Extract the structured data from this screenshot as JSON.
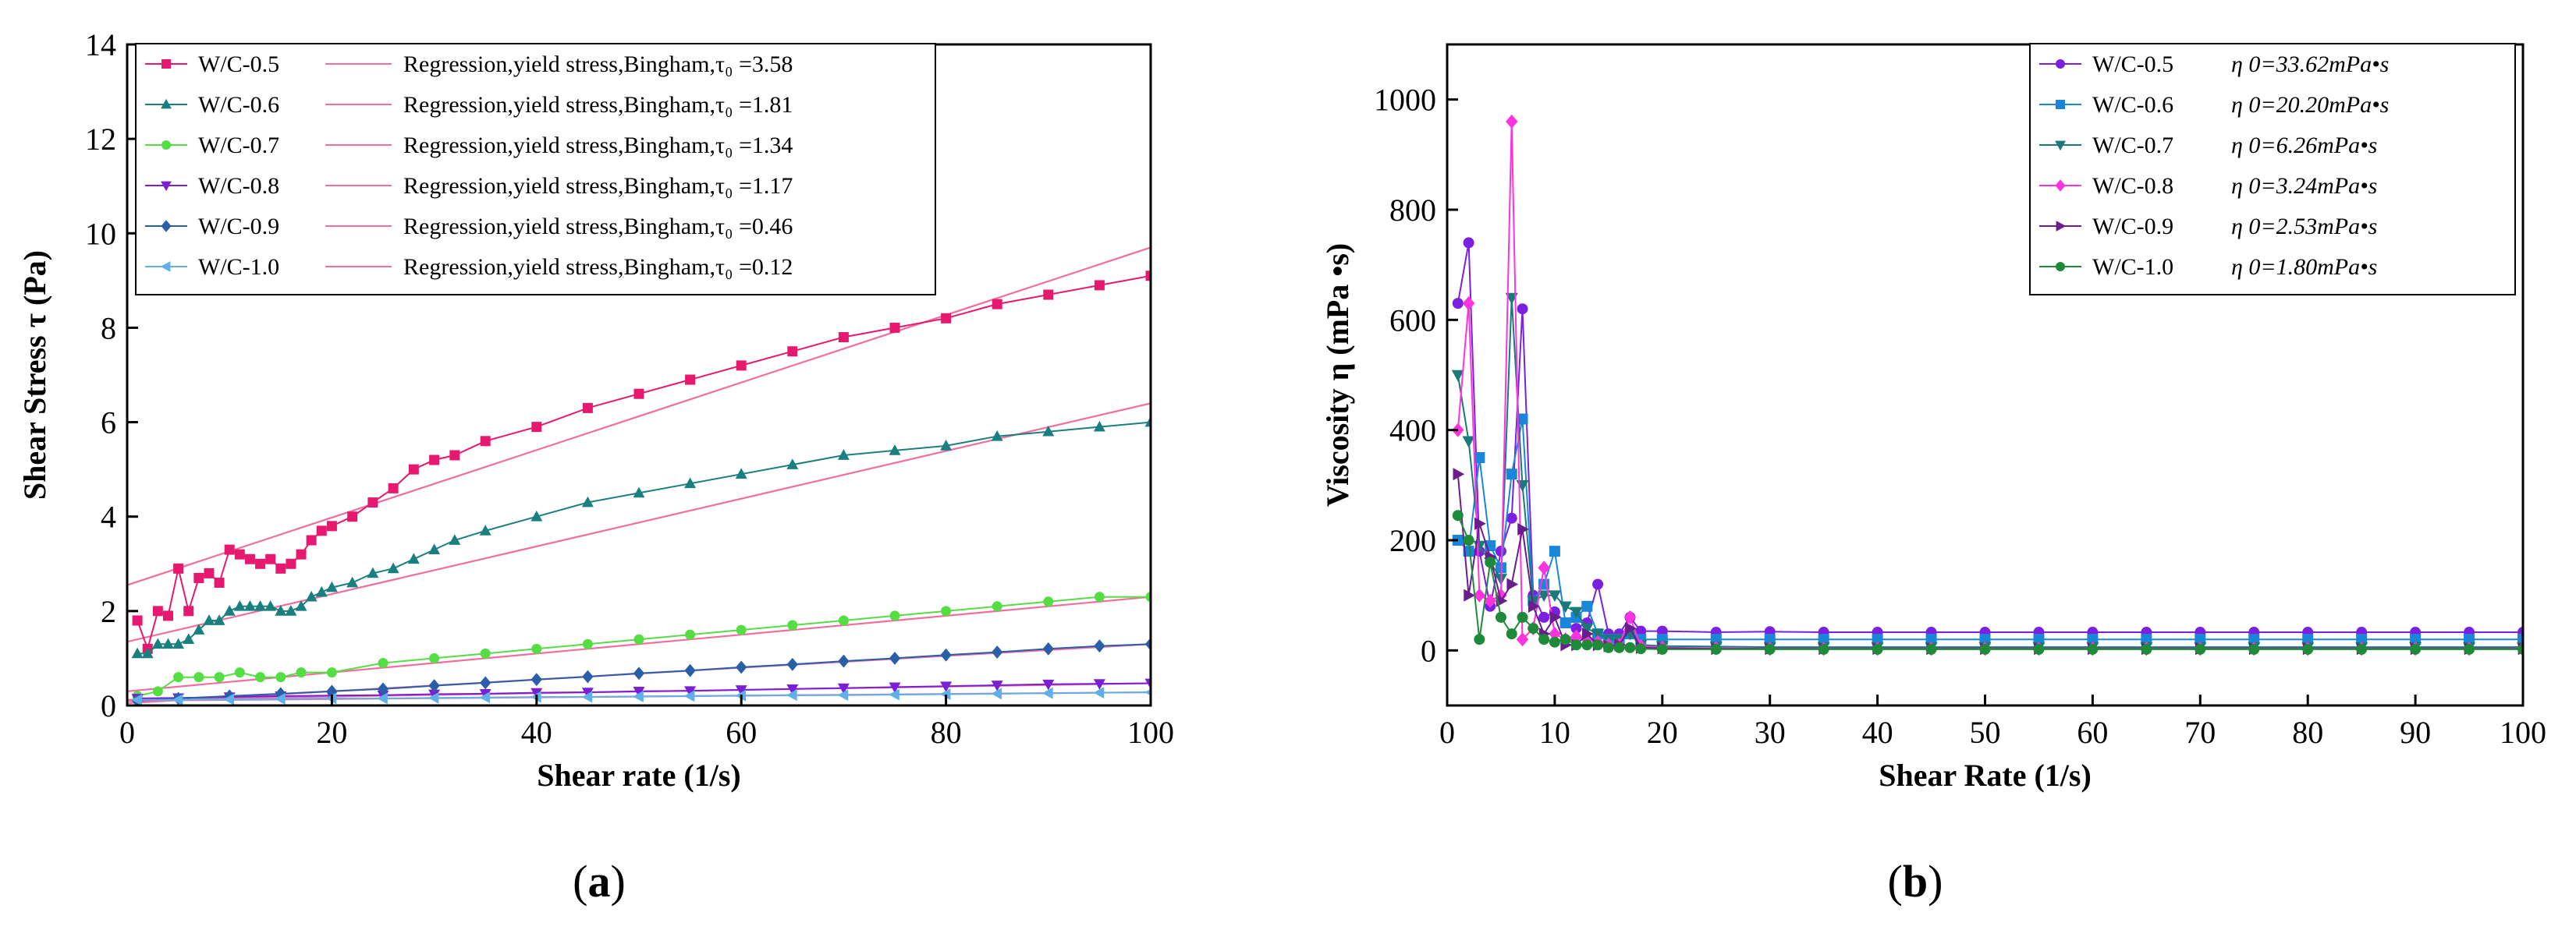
{
  "panel_labels": {
    "a": {
      "open": "(",
      "letter": "a",
      "close": ")"
    },
    "b": {
      "open": "(",
      "letter": "b",
      "close": ")"
    }
  },
  "chart_data": [
    {
      "id": "a",
      "type": "line",
      "xlabel": "Shear rate (1/s)",
      "ylabel": "Shear Stress  τ  (Pa)",
      "xlim": [
        0,
        100
      ],
      "ylim": [
        0,
        14
      ],
      "xticks": [
        0,
        20,
        40,
        60,
        80,
        100
      ],
      "yticks": [
        0,
        2,
        4,
        6,
        8,
        10,
        12,
        14
      ],
      "legend_position": "top-left",
      "series": [
        {
          "name": "W/C-0.5",
          "color": "#e6196e",
          "marker": "square",
          "x": [
            1,
            2,
            3,
            4,
            5,
            6,
            7,
            8,
            9,
            10,
            11,
            12,
            13,
            14,
            15,
            16,
            17,
            18,
            19,
            20,
            22,
            24,
            26,
            28,
            30,
            32,
            35,
            40,
            45,
            50,
            55,
            60,
            65,
            70,
            75,
            80,
            85,
            90,
            95,
            100
          ],
          "y": [
            1.8,
            1.2,
            2.0,
            1.9,
            2.9,
            2.0,
            2.7,
            2.8,
            2.6,
            3.3,
            3.2,
            3.1,
            3.0,
            3.1,
            2.9,
            3.0,
            3.2,
            3.5,
            3.7,
            3.8,
            4.0,
            4.3,
            4.6,
            5.0,
            5.2,
            5.3,
            5.6,
            5.9,
            6.3,
            6.6,
            6.9,
            7.2,
            7.5,
            7.8,
            8.0,
            8.2,
            8.5,
            8.7,
            8.9,
            9.1
          ]
        },
        {
          "name": "W/C-0.6",
          "color": "#1a7f7f",
          "marker": "triangle-up",
          "x": [
            1,
            2,
            3,
            4,
            5,
            6,
            7,
            8,
            9,
            10,
            11,
            12,
            13,
            14,
            15,
            16,
            17,
            18,
            19,
            20,
            22,
            24,
            26,
            28,
            30,
            32,
            35,
            40,
            45,
            50,
            55,
            60,
            65,
            70,
            75,
            80,
            85,
            90,
            95,
            100
          ],
          "y": [
            1.1,
            1.1,
            1.3,
            1.3,
            1.3,
            1.4,
            1.6,
            1.8,
            1.8,
            2.0,
            2.1,
            2.1,
            2.1,
            2.1,
            2.0,
            2.0,
            2.1,
            2.3,
            2.4,
            2.5,
            2.6,
            2.8,
            2.9,
            3.1,
            3.3,
            3.5,
            3.7,
            4.0,
            4.3,
            4.5,
            4.7,
            4.9,
            5.1,
            5.3,
            5.4,
            5.5,
            5.7,
            5.8,
            5.9,
            6.0
          ]
        },
        {
          "name": "W/C-0.7",
          "color": "#55dd44",
          "marker": "circle",
          "x": [
            1,
            3,
            5,
            7,
            9,
            11,
            13,
            15,
            17,
            20,
            25,
            30,
            35,
            40,
            45,
            50,
            55,
            60,
            65,
            70,
            75,
            80,
            85,
            90,
            95,
            100
          ],
          "y": [
            0.2,
            0.3,
            0.6,
            0.6,
            0.6,
            0.7,
            0.6,
            0.6,
            0.7,
            0.7,
            0.9,
            1.0,
            1.1,
            1.2,
            1.3,
            1.4,
            1.5,
            1.6,
            1.7,
            1.8,
            1.9,
            2.0,
            2.1,
            2.2,
            2.3,
            2.3
          ]
        },
        {
          "name": "W/C-0.8",
          "color": "#7a1fd6",
          "marker": "triangle-down",
          "x": [
            1,
            5,
            10,
            15,
            20,
            25,
            30,
            35,
            40,
            45,
            50,
            55,
            60,
            65,
            70,
            75,
            80,
            85,
            90,
            95,
            100
          ],
          "y": [
            0.15,
            0.16,
            0.18,
            0.2,
            0.21,
            0.22,
            0.24,
            0.25,
            0.27,
            0.28,
            0.3,
            0.31,
            0.33,
            0.35,
            0.37,
            0.39,
            0.41,
            0.43,
            0.45,
            0.46,
            0.47
          ]
        },
        {
          "name": "W/C-0.9",
          "color": "#2a5fa8",
          "marker": "diamond",
          "x": [
            1,
            5,
            10,
            15,
            20,
            25,
            30,
            35,
            40,
            45,
            50,
            55,
            60,
            65,
            70,
            75,
            80,
            85,
            90,
            95,
            100
          ],
          "y": [
            0.1,
            0.15,
            0.2,
            0.25,
            0.3,
            0.35,
            0.42,
            0.48,
            0.55,
            0.61,
            0.68,
            0.74,
            0.81,
            0.87,
            0.94,
            1.0,
            1.07,
            1.13,
            1.2,
            1.26,
            1.3
          ]
        },
        {
          "name": "W/C-1.0",
          "color": "#5fb0e8",
          "marker": "triangle-left",
          "x": [
            1,
            5,
            10,
            15,
            20,
            25,
            30,
            35,
            40,
            45,
            50,
            55,
            60,
            65,
            70,
            75,
            80,
            85,
            90,
            95,
            100
          ],
          "y": [
            0.12,
            0.12,
            0.13,
            0.14,
            0.15,
            0.15,
            0.16,
            0.17,
            0.18,
            0.18,
            0.19,
            0.2,
            0.21,
            0.22,
            0.22,
            0.23,
            0.24,
            0.25,
            0.26,
            0.27,
            0.28
          ]
        }
      ],
      "regressions": [
        {
          "name": "Regression,yield stress,Bingham,τ₀ =3.58",
          "color": "#f06ea0",
          "x": [
            0,
            100
          ],
          "y": [
            2.55,
            9.7
          ]
        },
        {
          "name": "Regression,yield stress,Bingham,τ₀ =1.81",
          "color": "#f06ea0",
          "x": [
            0,
            100
          ],
          "y": [
            1.35,
            6.4
          ]
        },
        {
          "name": "Regression,yield stress,Bingham,τ₀ =1.34",
          "color": "#f06ea0",
          "x": [
            0,
            100
          ],
          "y": [
            0.3,
            2.3
          ]
        },
        {
          "name": "Regression,yield stress,Bingham,τ₀ =1.17",
          "color": "#f06ea0",
          "x": [
            0,
            100
          ],
          "y": [
            0.12,
            0.47
          ]
        },
        {
          "name": "Regression,yield stress,Bingham,τ₀ =0.46",
          "color": "#f06ea0",
          "x": [
            0,
            100
          ],
          "y": [
            0.05,
            1.3
          ]
        },
        {
          "name": "Regression,yield stress,Bingham,τ₀ =0.12",
          "color": "#f06ea0",
          "x": [
            0,
            100
          ],
          "y": [
            0.1,
            0.28
          ]
        }
      ]
    },
    {
      "id": "b",
      "type": "line",
      "xlabel": "Shear Rate  (1/s)",
      "ylabel": "Viscosity  η  (mPa •s)",
      "xlim": [
        0,
        100
      ],
      "ylim": [
        -100,
        1100
      ],
      "xticks": [
        0,
        10,
        20,
        30,
        40,
        50,
        60,
        70,
        80,
        90,
        100
      ],
      "yticks": [
        0,
        200,
        400,
        600,
        800,
        1000
      ],
      "legend_position": "top-right",
      "series": [
        {
          "name": "W/C-0.5",
          "annotation": "η 0=33.62mPa•s",
          "color": "#7b1fe0",
          "marker": "circle",
          "x": [
            1,
            2,
            3,
            4,
            5,
            6,
            7,
            8,
            9,
            10,
            11,
            12,
            13,
            14,
            15,
            16,
            17,
            18,
            20,
            25,
            30,
            35,
            40,
            45,
            50,
            55,
            60,
            65,
            70,
            75,
            80,
            85,
            90,
            95,
            100
          ],
          "y": [
            630,
            740,
            180,
            80,
            180,
            240,
            620,
            100,
            60,
            70,
            50,
            40,
            50,
            120,
            30,
            30,
            60,
            35,
            35,
            33,
            34,
            33,
            33,
            33,
            33,
            33,
            33,
            33,
            33,
            33,
            33,
            33,
            33,
            33,
            33
          ]
        },
        {
          "name": "W/C-0.6",
          "annotation": "η 0=20.20mPa•s",
          "color": "#1a86d9",
          "marker": "square",
          "x": [
            1,
            2,
            3,
            4,
            5,
            6,
            7,
            8,
            9,
            10,
            11,
            12,
            13,
            14,
            15,
            16,
            17,
            18,
            20,
            25,
            30,
            35,
            40,
            45,
            50,
            55,
            60,
            65,
            70,
            75,
            80,
            85,
            90,
            95,
            100
          ],
          "y": [
            200,
            180,
            350,
            190,
            150,
            320,
            420,
            90,
            120,
            180,
            50,
            60,
            80,
            30,
            20,
            20,
            30,
            20,
            20,
            20,
            20,
            20,
            20,
            20,
            20,
            20,
            20,
            20,
            20,
            20,
            20,
            20,
            20,
            20,
            20
          ]
        },
        {
          "name": "W/C-0.7",
          "annotation": "η 0=6.26mPa•s",
          "color": "#1a7a7a",
          "marker": "triangle-down",
          "x": [
            1,
            2,
            3,
            4,
            5,
            6,
            7,
            8,
            9,
            10,
            11,
            12,
            13,
            14,
            15,
            16,
            17,
            18,
            20,
            25,
            30,
            35,
            40,
            45,
            50,
            55,
            60,
            65,
            70,
            75,
            80,
            85,
            90,
            95,
            100
          ],
          "y": [
            500,
            380,
            190,
            160,
            130,
            640,
            300,
            90,
            100,
            100,
            80,
            70,
            40,
            30,
            20,
            20,
            30,
            10,
            8,
            7,
            6,
            6,
            6,
            6,
            6,
            6,
            6,
            6,
            6,
            6,
            6,
            6,
            6,
            6,
            6
          ]
        },
        {
          "name": "W/C-0.8",
          "annotation": "η 0=3.24mPa•s",
          "color": "#ff33dd",
          "marker": "diamond",
          "x": [
            1,
            2,
            3,
            4,
            5,
            6,
            7,
            8,
            9,
            10,
            11,
            12,
            13,
            14,
            15,
            16,
            17,
            18,
            20,
            25,
            30,
            35,
            40,
            45,
            50,
            55,
            60,
            65,
            70,
            75,
            80,
            85,
            90,
            95,
            100
          ],
          "y": [
            400,
            630,
            100,
            90,
            100,
            960,
            20,
            40,
            150,
            30,
            20,
            25,
            20,
            15,
            10,
            10,
            60,
            8,
            5,
            4,
            3,
            3,
            3,
            3,
            3,
            3,
            3,
            3,
            3,
            3,
            3,
            3,
            3,
            3,
            3
          ]
        },
        {
          "name": "W/C-0.9",
          "annotation": "η 0=2.53mPa•s",
          "color": "#6a1d8c",
          "marker": "triangle-right",
          "x": [
            1,
            2,
            3,
            4,
            5,
            6,
            7,
            8,
            9,
            10,
            11,
            12,
            13,
            14,
            15,
            16,
            17,
            18,
            20,
            25,
            30,
            35,
            40,
            45,
            50,
            55,
            60,
            65,
            70,
            75,
            80,
            85,
            90,
            95,
            100
          ],
          "y": [
            320,
            100,
            230,
            170,
            90,
            120,
            220,
            80,
            30,
            60,
            10,
            10,
            30,
            10,
            8,
            10,
            40,
            5,
            4,
            3,
            3,
            3,
            3,
            3,
            3,
            3,
            3,
            3,
            3,
            3,
            3,
            3,
            3,
            3,
            3
          ]
        },
        {
          "name": "W/C-1.0",
          "annotation": "η 0=1.80mPa•s",
          "color": "#1f8a3a",
          "marker": "circle",
          "x": [
            1,
            2,
            3,
            4,
            5,
            6,
            7,
            8,
            9,
            10,
            11,
            12,
            13,
            14,
            15,
            16,
            17,
            18,
            20,
            25,
            30,
            35,
            40,
            45,
            50,
            55,
            60,
            65,
            70,
            75,
            80,
            85,
            90,
            95,
            100
          ],
          "y": [
            245,
            200,
            20,
            160,
            60,
            30,
            60,
            40,
            20,
            15,
            20,
            10,
            10,
            10,
            5,
            5,
            5,
            3,
            2,
            2,
            2,
            2,
            2,
            2,
            2,
            2,
            2,
            2,
            2,
            2,
            2,
            2,
            2,
            2,
            2
          ]
        }
      ]
    }
  ]
}
